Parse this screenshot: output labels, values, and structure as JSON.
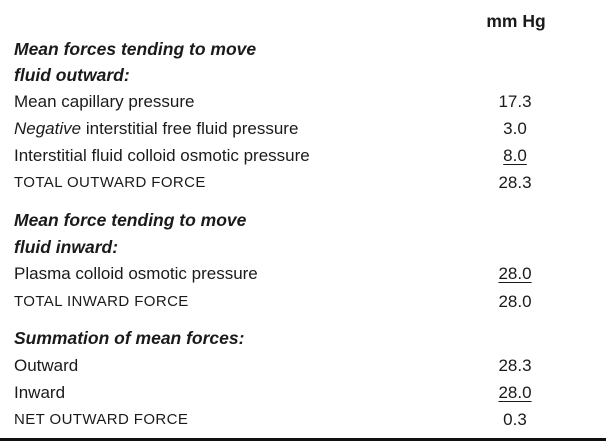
{
  "unit_header": "mm Hg",
  "outward": {
    "heading_line1": "Mean forces tending to move",
    "heading_line2": "fluid outward:",
    "rows": [
      {
        "label_em": "",
        "label": "Mean capillary pressure",
        "value": "17.3"
      },
      {
        "label_em": "Negative",
        "label": " interstitial free fluid pressure",
        "value": "3.0"
      },
      {
        "label_em": "",
        "label": "Interstitial fluid colloid osmotic pressure",
        "value": "8.0"
      }
    ],
    "total_label": "TOTAL OUTWARD FORCE",
    "total_value": "28.3"
  },
  "inward": {
    "heading_line1": "Mean force tending to move",
    "heading_line2": "fluid inward:",
    "rows": [
      {
        "label": "Plasma colloid osmotic pressure",
        "value": "28.0"
      }
    ],
    "total_label": "TOTAL INWARD FORCE",
    "total_value": "28.0"
  },
  "summation": {
    "heading": "Summation of mean forces:",
    "rows": [
      {
        "label": "Outward",
        "value": "28.3"
      },
      {
        "label": "Inward",
        "value": "28.0"
      }
    ],
    "net_label": "NET OUTWARD FORCE",
    "net_value": "0.3"
  }
}
